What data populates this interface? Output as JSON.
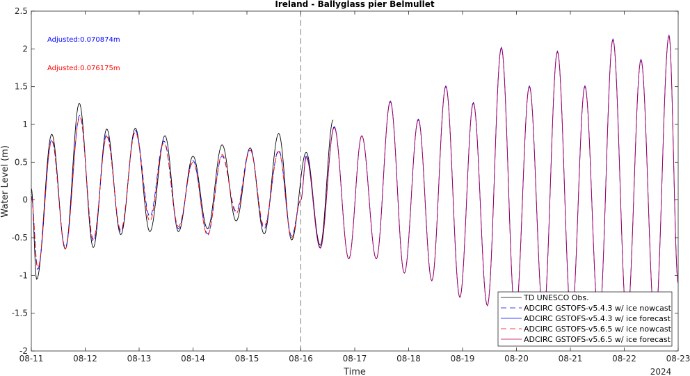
{
  "chart_data": {
    "type": "line",
    "title": "Ireland - Ballyglass pier Belmullet",
    "xlabel": "Time",
    "ylabel": "Water Level (m)",
    "year_label": "2024",
    "xlim": [
      0,
      12
    ],
    "ylim": [
      -2,
      2.5
    ],
    "x_ticks": [
      {
        "value": 0,
        "label": "08-11"
      },
      {
        "value": 1,
        "label": "08-12"
      },
      {
        "value": 2,
        "label": "08-13"
      },
      {
        "value": 3,
        "label": "08-14"
      },
      {
        "value": 4,
        "label": "08-15"
      },
      {
        "value": 5,
        "label": "08-16"
      },
      {
        "value": 6,
        "label": "08-17"
      },
      {
        "value": 7,
        "label": "08-18"
      },
      {
        "value": 8,
        "label": "08-19"
      },
      {
        "value": 9,
        "label": "08-20"
      },
      {
        "value": 10,
        "label": "08-21"
      },
      {
        "value": 11,
        "label": "08-22"
      },
      {
        "value": 12,
        "label": "08-23"
      }
    ],
    "y_ticks": [
      {
        "value": 2.5,
        "label": "2.5"
      },
      {
        "value": 2,
        "label": "2"
      },
      {
        "value": 1.5,
        "label": "1.5"
      },
      {
        "value": 1,
        "label": "1"
      },
      {
        "value": 0.5,
        "label": "0.5"
      },
      {
        "value": 0,
        "label": "0"
      },
      {
        "value": -0.5,
        "label": "-0.5"
      },
      {
        "value": -1,
        "label": "-1"
      },
      {
        "value": -1.5,
        "label": "-1.5"
      },
      {
        "value": -2,
        "label": "-2"
      }
    ],
    "nowcast_forecast_divider_x": 5,
    "annotations": [
      {
        "text": "Adjusted:0.070874m",
        "color": "#0000ff"
      },
      {
        "text": "Adjusted:0.076175m",
        "color": "#ff0000"
      }
    ],
    "legend_position": "bottom-right",
    "extrema_note": "days since 08-11 00:00",
    "series": [
      {
        "name": "TD UNESCO Obs.",
        "color": "#000000",
        "dash": "solid",
        "extrema": [
          [
            0.0,
            0.15
          ],
          [
            0.1,
            -1.05
          ],
          [
            0.38,
            0.87
          ],
          [
            0.63,
            -0.65
          ],
          [
            0.89,
            1.28
          ],
          [
            1.15,
            -0.63
          ],
          [
            1.4,
            0.94
          ],
          [
            1.66,
            -0.46
          ],
          [
            1.93,
            0.95
          ],
          [
            2.2,
            -0.42
          ],
          [
            2.48,
            0.85
          ],
          [
            2.73,
            -0.42
          ],
          [
            3.0,
            0.58
          ],
          [
            3.27,
            -0.38
          ],
          [
            3.54,
            0.73
          ],
          [
            3.8,
            -0.28
          ],
          [
            4.06,
            0.69
          ],
          [
            4.32,
            -0.45
          ],
          [
            4.59,
            0.88
          ],
          [
            4.83,
            -0.53
          ],
          [
            5.1,
            0.63
          ],
          [
            5.36,
            -0.6
          ],
          [
            5.6,
            1.06
          ]
        ]
      },
      {
        "name": "ADCIRC GSTOFS-v5.4.3 w/ ice nowcast",
        "color": "#0000ff",
        "dash": "dashed",
        "extrema": [
          [
            0.0,
            0.05
          ],
          [
            0.12,
            -0.92
          ],
          [
            0.38,
            0.8
          ],
          [
            0.63,
            -0.63
          ],
          [
            0.9,
            1.12
          ],
          [
            1.15,
            -0.55
          ],
          [
            1.4,
            0.87
          ],
          [
            1.66,
            -0.42
          ],
          [
            1.93,
            0.92
          ],
          [
            2.2,
            -0.22
          ],
          [
            2.46,
            0.78
          ],
          [
            2.73,
            -0.38
          ],
          [
            3.0,
            0.52
          ],
          [
            3.27,
            -0.45
          ],
          [
            3.54,
            0.58
          ],
          [
            3.8,
            -0.15
          ],
          [
            4.06,
            0.68
          ],
          [
            4.32,
            -0.38
          ],
          [
            4.59,
            0.66
          ],
          [
            4.83,
            -0.48
          ],
          [
            5.0,
            0.0
          ]
        ]
      },
      {
        "name": "ADCIRC GSTOFS-v5.4.3 w/ ice forecast",
        "color": "#0000ff",
        "dash": "solid",
        "extrema": [
          [
            5.0,
            0.0
          ],
          [
            5.1,
            0.58
          ],
          [
            5.36,
            -0.63
          ],
          [
            5.62,
            0.97
          ],
          [
            5.89,
            -0.78
          ],
          [
            6.13,
            0.85
          ],
          [
            6.4,
            -0.78
          ],
          [
            6.66,
            1.31
          ],
          [
            6.92,
            -0.97
          ],
          [
            7.18,
            1.07
          ],
          [
            7.43,
            -1.07
          ],
          [
            7.69,
            1.51
          ],
          [
            7.95,
            -1.29
          ],
          [
            8.2,
            1.29
          ],
          [
            8.46,
            -1.4
          ],
          [
            8.72,
            2.02
          ],
          [
            8.98,
            -1.55
          ],
          [
            9.24,
            1.51
          ],
          [
            9.5,
            -1.55
          ],
          [
            9.76,
            1.97
          ],
          [
            10.02,
            -1.6
          ],
          [
            10.27,
            1.51
          ],
          [
            10.53,
            -1.62
          ],
          [
            10.79,
            2.13
          ],
          [
            11.05,
            -1.6
          ],
          [
            11.31,
            1.86
          ],
          [
            11.57,
            -1.65
          ],
          [
            11.83,
            2.18
          ],
          [
            12.0,
            -1.1
          ]
        ]
      },
      {
        "name": "ADCIRC GSTOFS-v5.6.5 w/ ice nowcast",
        "color": "#ff0000",
        "dash": "dashed",
        "extrema": [
          [
            0.0,
            0.03
          ],
          [
            0.12,
            -0.9
          ],
          [
            0.38,
            0.78
          ],
          [
            0.63,
            -0.65
          ],
          [
            0.9,
            1.1
          ],
          [
            1.15,
            -0.52
          ],
          [
            1.4,
            0.84
          ],
          [
            1.66,
            -0.4
          ],
          [
            1.93,
            0.9
          ],
          [
            2.2,
            -0.28
          ],
          [
            2.46,
            0.76
          ],
          [
            2.73,
            -0.35
          ],
          [
            3.0,
            0.5
          ],
          [
            3.27,
            -0.47
          ],
          [
            3.54,
            0.6
          ],
          [
            3.8,
            -0.18
          ],
          [
            4.06,
            0.66
          ],
          [
            4.32,
            -0.35
          ],
          [
            4.59,
            0.64
          ],
          [
            4.83,
            -0.5
          ],
          [
            5.0,
            0.0
          ]
        ]
      },
      {
        "name": "ADCIRC GSTOFS-v5.6.5 w/ ice forecast",
        "color": "#b00050",
        "dash": "solid",
        "extrema": [
          [
            5.0,
            0.0
          ],
          [
            5.1,
            0.56
          ],
          [
            5.36,
            -0.64
          ],
          [
            5.62,
            0.96
          ],
          [
            5.89,
            -0.78
          ],
          [
            6.13,
            0.85
          ],
          [
            6.4,
            -0.78
          ],
          [
            6.66,
            1.3
          ],
          [
            6.92,
            -0.97
          ],
          [
            7.18,
            1.06
          ],
          [
            7.43,
            -1.07
          ],
          [
            7.69,
            1.5
          ],
          [
            7.95,
            -1.29
          ],
          [
            8.2,
            1.28
          ],
          [
            8.46,
            -1.4
          ],
          [
            8.72,
            2.01
          ],
          [
            8.98,
            -1.55
          ],
          [
            9.24,
            1.5
          ],
          [
            9.5,
            -1.55
          ],
          [
            9.76,
            1.96
          ],
          [
            10.02,
            -1.6
          ],
          [
            10.27,
            1.5
          ],
          [
            10.53,
            -1.62
          ],
          [
            10.79,
            2.12
          ],
          [
            11.05,
            -1.6
          ],
          [
            11.31,
            1.85
          ],
          [
            11.57,
            -1.65
          ],
          [
            11.83,
            2.17
          ],
          [
            12.0,
            -1.1
          ]
        ]
      }
    ]
  }
}
